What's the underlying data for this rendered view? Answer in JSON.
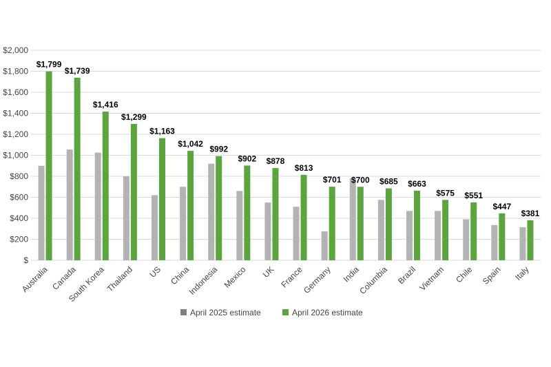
{
  "chart_data": {
    "type": "bar",
    "categories": [
      "Australia",
      "Canada",
      "South Korea",
      "Thailand",
      "US",
      "China",
      "Indonesia",
      "Mexico",
      "UK",
      "France",
      "Germany",
      "India",
      "Columbia",
      "Brazil",
      "Vietnam",
      "Chile",
      "Spain",
      "Italy"
    ],
    "series": [
      {
        "name": "April 2025 estimate",
        "color": "#b3b3b3",
        "legend_color": "#7f7f7f",
        "values": [
          900,
          1055,
          1025,
          800,
          620,
          700,
          920,
          660,
          550,
          510,
          275,
          780,
          575,
          470,
          470,
          390,
          335,
          315
        ],
        "labels": []
      },
      {
        "name": "April 2026 estimate",
        "color": "#5aa63c",
        "legend_color": "#5aa63c",
        "values": [
          1799,
          1739,
          1416,
          1299,
          1163,
          1042,
          992,
          902,
          878,
          813,
          701,
          700,
          685,
          663,
          575,
          551,
          447,
          381
        ],
        "labels": [
          "$1,799",
          "$1,739",
          "$1,416",
          "$1,299",
          "$1,163",
          "$1,042",
          "$992",
          "$902",
          "$878",
          "$813",
          "$701",
          "$700",
          "$685",
          "$663",
          "$575",
          "$551",
          "$447",
          "$381"
        ]
      }
    ],
    "ylim": [
      0,
      2000
    ],
    "yticks": [
      0,
      200,
      400,
      600,
      800,
      1000,
      1200,
      1400,
      1600,
      1800,
      2000
    ],
    "ytick_labels": [
      "$",
      "$200",
      "$400",
      "$600",
      "$800",
      "$1,000",
      "$1,200",
      "$1,400",
      "$1,600",
      "$1,800",
      "$2,000"
    ],
    "grid": true,
    "grid_color": "#d9d9d9",
    "legend_position": "bottom"
  }
}
